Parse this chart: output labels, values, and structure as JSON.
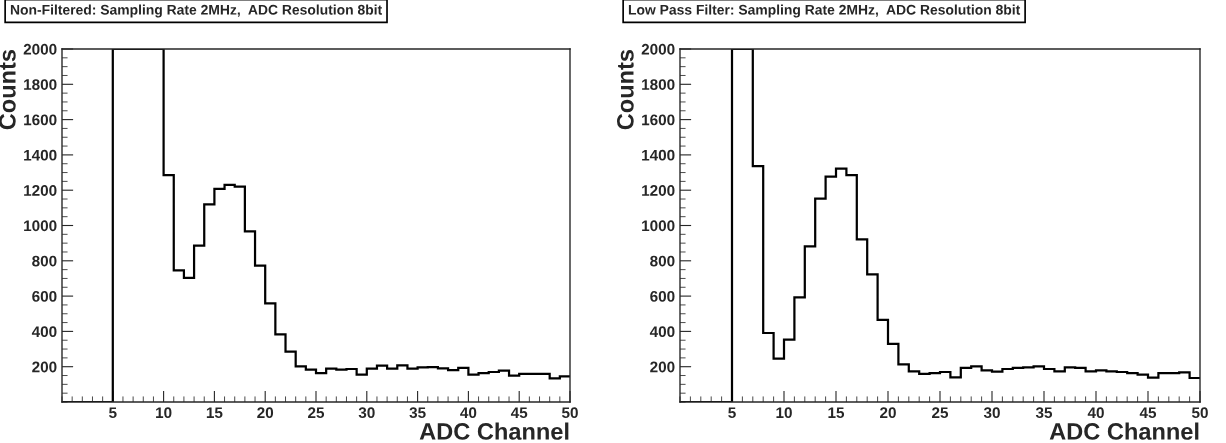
{
  "chart_data": [
    {
      "type": "histogram",
      "title": "Non-Filtered: Sampling Rate 2MHz,  ADC Resolution 8bit",
      "xlabel": "ADC Channel",
      "ylabel": "Counts",
      "color": "#000000",
      "bins": [
        0,
        1,
        2,
        3,
        4,
        5,
        6,
        7,
        8,
        9,
        10,
        11,
        12,
        13,
        14,
        15,
        16,
        17,
        18,
        19,
        20,
        21,
        22,
        23,
        24,
        25,
        26,
        27,
        28,
        29,
        30,
        31,
        32,
        33,
        34,
        35,
        36,
        37,
        38,
        39,
        40,
        41,
        42,
        43,
        44,
        45,
        46,
        47,
        48,
        49,
        50
      ],
      "values": [
        0,
        0,
        0,
        0,
        0,
        2000,
        2000,
        2000,
        2000,
        2000,
        1286,
        746,
        703,
        886,
        1120,
        1207,
        1230,
        1220,
        967,
        773,
        559,
        383,
        285,
        202,
        183,
        164,
        189,
        183,
        187,
        155,
        189,
        206,
        189,
        208,
        189,
        196,
        198,
        191,
        181,
        193,
        155,
        164,
        170,
        178,
        149,
        159,
        159,
        159,
        134,
        145
      ],
      "xlim": [
        0,
        50
      ],
      "ylim": [
        0,
        2000
      ],
      "xticks": [
        5,
        10,
        15,
        20,
        25,
        30,
        35,
        40,
        45,
        50
      ],
      "yticks": [
        200,
        400,
        600,
        800,
        1000,
        1200,
        1400,
        1600,
        1800,
        2000
      ],
      "grid": false
    },
    {
      "type": "histogram",
      "title": "Low Pass Filter: Sampling Rate 2MHz,  ADC Resolution 8bit",
      "xlabel": "ADC Channel",
      "ylabel": "Counts",
      "color": "#000000",
      "bins": [
        0,
        1,
        2,
        3,
        4,
        5,
        6,
        7,
        8,
        9,
        10,
        11,
        12,
        13,
        14,
        15,
        16,
        17,
        18,
        19,
        20,
        21,
        22,
        23,
        24,
        25,
        26,
        27,
        28,
        29,
        30,
        31,
        32,
        33,
        34,
        35,
        36,
        37,
        38,
        39,
        40,
        41,
        42,
        43,
        44,
        45,
        46,
        47,
        48,
        49,
        50
      ],
      "values": [
        0,
        0,
        0,
        0,
        0,
        2000,
        2000,
        1336,
        391,
        246,
        353,
        593,
        882,
        1152,
        1277,
        1322,
        1285,
        922,
        723,
        465,
        329,
        213,
        174,
        159,
        164,
        170,
        140,
        193,
        202,
        179,
        172,
        187,
        193,
        196,
        202,
        187,
        174,
        196,
        193,
        174,
        179,
        174,
        170,
        164,
        155,
        138,
        164,
        164,
        168,
        136
      ],
      "xlim": [
        0,
        50
      ],
      "ylim": [
        0,
        2000
      ],
      "xticks": [
        5,
        10,
        15,
        20,
        25,
        30,
        35,
        40,
        45,
        50
      ],
      "yticks": [
        200,
        400,
        600,
        800,
        1000,
        1200,
        1400,
        1600,
        1800,
        2000
      ],
      "grid": false
    }
  ]
}
